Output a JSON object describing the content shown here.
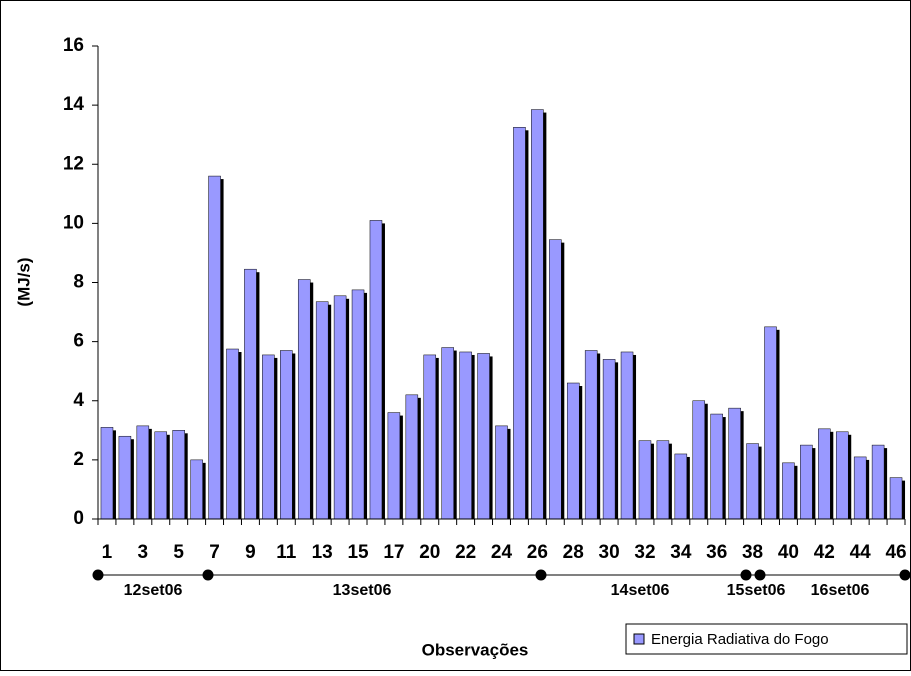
{
  "chart_data": {
    "type": "bar",
    "x_label": "Observações",
    "y_label": "(MJ/s)",
    "categories": [
      "1",
      null,
      "3",
      null,
      "5",
      null,
      "7",
      null,
      "9",
      null,
      "11",
      null,
      "13",
      null,
      "15",
      null,
      "17",
      null,
      "20",
      null,
      "22",
      null,
      "24",
      null,
      "26",
      null,
      "28",
      null,
      "30",
      null,
      "32",
      null,
      "34",
      null,
      "36",
      null,
      "38",
      null,
      "40",
      null,
      "42",
      null,
      "44",
      null,
      "46"
    ],
    "series": [
      {
        "name": "Energia Radiativa do Fogo",
        "color": "#9999ff",
        "values": [
          3.1,
          2.8,
          3.15,
          2.95,
          3.0,
          2.0,
          11.6,
          5.75,
          8.45,
          5.55,
          5.7,
          8.1,
          7.35,
          7.55,
          7.75,
          10.1,
          3.6,
          4.2,
          5.55,
          5.8,
          5.65,
          5.6,
          3.15,
          13.25,
          13.85,
          9.45,
          4.6,
          5.7,
          5.4,
          5.65,
          2.65,
          2.65,
          2.2,
          4.0,
          3.55,
          3.75,
          2.55,
          6.5,
          1.9,
          2.5,
          3.05,
          2.95,
          2.1,
          2.5,
          1.4
        ]
      }
    ],
    "ylim": [
      0,
      16
    ],
    "yticks": [
      0,
      2,
      4,
      6,
      8,
      10,
      12,
      14,
      16
    ],
    "grid": false,
    "date_labels": [
      "12set06",
      "13set06",
      "14set06",
      "15set06",
      "16set06"
    ]
  }
}
